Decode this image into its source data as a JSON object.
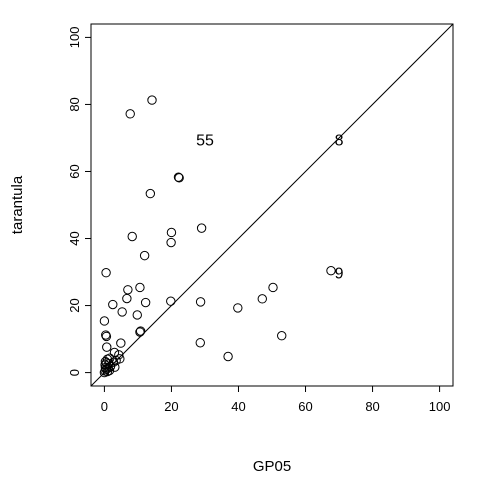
{
  "chart_data": {
    "type": "scatter",
    "title": "",
    "xlabel": "GP05",
    "ylabel": "tarantula",
    "xlim": [
      -4,
      104
    ],
    "ylim": [
      -4,
      104
    ],
    "xticks": [
      "0",
      "20",
      "40",
      "60",
      "80",
      "100"
    ],
    "yticks": [
      "0",
      "20",
      "40",
      "60",
      "80",
      "100"
    ],
    "grid": false,
    "legend": "none",
    "reference_line": "y = x",
    "points": [
      {
        "x": 7.7,
        "y": 77.2
      },
      {
        "x": 14.2,
        "y": 81.3
      },
      {
        "x": 22.1,
        "y": 58.3
      },
      {
        "x": 22.3,
        "y": 58.1
      },
      {
        "x": 13.7,
        "y": 53.4
      },
      {
        "x": 8.3,
        "y": 40.6
      },
      {
        "x": 20,
        "y": 41.8
      },
      {
        "x": 19.9,
        "y": 38.8
      },
      {
        "x": 29,
        "y": 43.1
      },
      {
        "x": 12,
        "y": 34.9
      },
      {
        "x": 0.5,
        "y": 29.8
      },
      {
        "x": 7,
        "y": 24.7
      },
      {
        "x": 10.6,
        "y": 25.4
      },
      {
        "x": 6.7,
        "y": 22.1
      },
      {
        "x": 2.5,
        "y": 20.3
      },
      {
        "x": 12.3,
        "y": 20.9
      },
      {
        "x": 5.3,
        "y": 18.1
      },
      {
        "x": 9.8,
        "y": 17.2
      },
      {
        "x": 0,
        "y": 15.4
      },
      {
        "x": 10.6,
        "y": 12.1
      },
      {
        "x": 10.8,
        "y": 12.4
      },
      {
        "x": 0.4,
        "y": 11.2
      },
      {
        "x": 0.6,
        "y": 10.8
      },
      {
        "x": 4.9,
        "y": 8.8
      },
      {
        "x": 0.7,
        "y": 7.6
      },
      {
        "x": 3,
        "y": 6
      },
      {
        "x": 4.3,
        "y": 5.3
      },
      {
        "x": 4.6,
        "y": 4.1
      },
      {
        "x": 3.5,
        "y": 3.6
      },
      {
        "x": 2.7,
        "y": 3.1
      },
      {
        "x": 1.4,
        "y": 2.6
      },
      {
        "x": 0.9,
        "y": 4
      },
      {
        "x": 1.6,
        "y": 4.3
      },
      {
        "x": 0.3,
        "y": 3.3
      },
      {
        "x": 0.2,
        "y": 2.3
      },
      {
        "x": 0.3,
        "y": 1.5
      },
      {
        "x": 0.5,
        "y": 1
      },
      {
        "x": 1.1,
        "y": 1.3
      },
      {
        "x": 1.5,
        "y": 0.6
      },
      {
        "x": 0.2,
        "y": 0.5
      },
      {
        "x": 0.9,
        "y": 0.3
      },
      {
        "x": 3.1,
        "y": 1.6
      },
      {
        "x": 0.6,
        "y": 2.9
      },
      {
        "x": 0,
        "y": 0
      },
      {
        "x": 1.8,
        "y": 1.8
      },
      {
        "x": 19.8,
        "y": 21.3
      },
      {
        "x": 28.7,
        "y": 21.1
      },
      {
        "x": 28.6,
        "y": 8.9
      },
      {
        "x": 36.9,
        "y": 4.8
      },
      {
        "x": 39.8,
        "y": 19.3
      },
      {
        "x": 47.1,
        "y": 22
      },
      {
        "x": 50.3,
        "y": 25.4
      },
      {
        "x": 52.9,
        "y": 11
      },
      {
        "x": 67.6,
        "y": 30.4
      }
    ],
    "annotations": [
      {
        "text": "55",
        "x": 30,
        "y": 69.5
      },
      {
        "text": "8",
        "x": 70,
        "y": 69.5
      },
      {
        "text": "9",
        "x": 70,
        "y": 29.8
      }
    ]
  }
}
